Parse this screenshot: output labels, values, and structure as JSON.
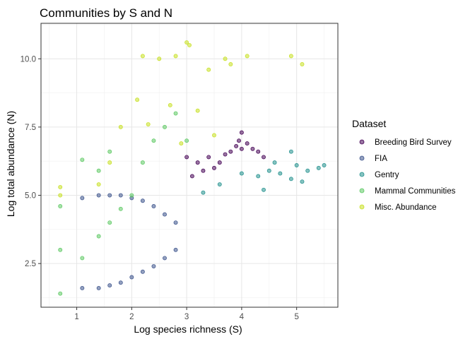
{
  "chart_data": {
    "type": "scatter",
    "title": "Communities by S and N",
    "xlabel": "Log species richness (S)",
    "ylabel": "Log total abundance (N)",
    "xlim": [
      0.35,
      5.75
    ],
    "ylim": [
      0.9,
      11.3
    ],
    "x_ticks": [
      1,
      2,
      3,
      4,
      5
    ],
    "y_ticks": [
      2.5,
      5.0,
      7.5,
      10.0
    ],
    "x_tick_labels": [
      "1",
      "2",
      "3",
      "4",
      "5"
    ],
    "y_tick_labels": [
      "2.5",
      "5.0",
      "7.5",
      "10.0"
    ],
    "grid": true,
    "legend": {
      "title": "Dataset",
      "position": "right"
    },
    "series": [
      {
        "name": "Breeding Bird Survey",
        "color": "#440154",
        "points": [
          [
            3.8,
            6.6
          ],
          [
            3.9,
            6.8
          ],
          [
            4.0,
            6.7
          ],
          [
            4.1,
            6.9
          ],
          [
            3.7,
            6.5
          ],
          [
            4.2,
            6.7
          ],
          [
            3.6,
            6.2
          ],
          [
            4.3,
            6.6
          ],
          [
            3.5,
            6.0
          ],
          [
            3.4,
            6.4
          ],
          [
            4.0,
            7.3
          ],
          [
            3.95,
            7.0
          ],
          [
            3.3,
            5.9
          ],
          [
            4.4,
            6.4
          ],
          [
            3.2,
            6.2
          ],
          [
            3.0,
            6.4
          ],
          [
            3.1,
            5.7
          ]
        ]
      },
      {
        "name": "FIA",
        "color": "#3b528b",
        "points": [
          [
            1.1,
            1.6
          ],
          [
            1.1,
            4.9
          ],
          [
            1.4,
            1.6
          ],
          [
            1.4,
            5.0
          ],
          [
            1.6,
            1.7
          ],
          [
            1.6,
            5.0
          ],
          [
            1.8,
            1.8
          ],
          [
            1.8,
            5.0
          ],
          [
            2.0,
            2.0
          ],
          [
            2.0,
            4.9
          ],
          [
            2.2,
            2.2
          ],
          [
            2.2,
            4.8
          ],
          [
            2.4,
            2.4
          ],
          [
            2.4,
            4.6
          ],
          [
            2.6,
            2.7
          ],
          [
            2.6,
            4.3
          ],
          [
            2.8,
            3.0
          ],
          [
            2.8,
            4.0
          ]
        ]
      },
      {
        "name": "Gentry",
        "color": "#21908d",
        "points": [
          [
            4.0,
            5.8
          ],
          [
            4.3,
            5.7
          ],
          [
            4.5,
            5.9
          ],
          [
            4.7,
            5.8
          ],
          [
            4.9,
            5.6
          ],
          [
            5.0,
            6.1
          ],
          [
            5.2,
            5.9
          ],
          [
            5.4,
            6.0
          ],
          [
            5.5,
            6.1
          ],
          [
            4.9,
            6.6
          ],
          [
            4.4,
            5.2
          ],
          [
            5.1,
            5.5
          ],
          [
            4.6,
            6.2
          ],
          [
            3.6,
            5.4
          ],
          [
            3.3,
            5.1
          ]
        ]
      },
      {
        "name": "Mammal Communities",
        "color": "#5dc963",
        "points": [
          [
            0.7,
            1.4
          ],
          [
            0.7,
            3.0
          ],
          [
            0.7,
            4.6
          ],
          [
            1.1,
            2.7
          ],
          [
            1.1,
            6.3
          ],
          [
            1.4,
            3.5
          ],
          [
            1.4,
            5.9
          ],
          [
            1.6,
            4.0
          ],
          [
            1.6,
            6.6
          ],
          [
            1.8,
            4.5
          ],
          [
            2.0,
            5.0
          ],
          [
            2.2,
            6.2
          ],
          [
            2.4,
            7.0
          ],
          [
            2.6,
            7.5
          ],
          [
            2.8,
            8.0
          ],
          [
            3.0,
            7.0
          ]
        ]
      },
      {
        "name": "Misc. Abundance",
        "color": "#c7e020",
        "points": [
          [
            0.7,
            5.3
          ],
          [
            0.7,
            5.0
          ],
          [
            1.4,
            5.4
          ],
          [
            1.6,
            6.2
          ],
          [
            1.8,
            7.5
          ],
          [
            2.1,
            8.5
          ],
          [
            2.2,
            10.1
          ],
          [
            2.5,
            10.0
          ],
          [
            2.8,
            10.1
          ],
          [
            3.0,
            10.6
          ],
          [
            3.05,
            10.5
          ],
          [
            3.4,
            9.6
          ],
          [
            3.7,
            10.0
          ],
          [
            3.8,
            9.8
          ],
          [
            4.1,
            10.1
          ],
          [
            4.9,
            10.1
          ],
          [
            5.1,
            9.8
          ],
          [
            2.7,
            8.3
          ],
          [
            3.2,
            8.1
          ],
          [
            2.3,
            7.6
          ],
          [
            2.9,
            6.9
          ],
          [
            3.5,
            7.2
          ]
        ]
      }
    ]
  }
}
